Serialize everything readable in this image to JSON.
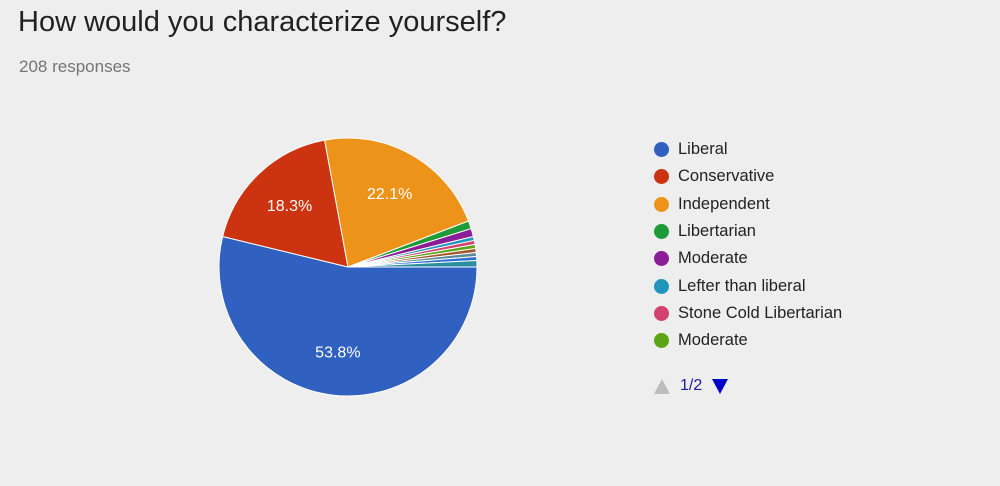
{
  "header": {
    "title": "How would you characterize yourself?",
    "responses": "208 responses"
  },
  "chart_data": {
    "type": "pie",
    "slices": [
      {
        "label": "Liberal",
        "value": 53.8,
        "color": "#3060c0",
        "data_label": "53.8%"
      },
      {
        "label": "Conservative",
        "value": 18.3,
        "color": "#cc3311",
        "data_label": "18.3%"
      },
      {
        "label": "Independent",
        "value": 22.1,
        "color": "#ee9319",
        "data_label": "22.1%"
      },
      {
        "label": "Libertarian",
        "value": 1.0,
        "color": "#1f9a39",
        "data_label": ""
      },
      {
        "label": "Moderate",
        "value": 1.0,
        "color": "#8c1d98",
        "data_label": ""
      },
      {
        "label": "Lefter than liberal",
        "value": 0.5,
        "color": "#2196bc",
        "data_label": ""
      },
      {
        "label": "Stone Cold Libertarian",
        "value": 0.5,
        "color": "#d3426f",
        "data_label": ""
      },
      {
        "label": "Moderate",
        "value": 0.5,
        "color": "#5da416",
        "data_label": ""
      },
      {
        "label": "",
        "value": 0.5,
        "color": "#a05a2c",
        "data_label": ""
      },
      {
        "label": "",
        "value": 0.5,
        "color": "#5a8a99",
        "data_label": ""
      },
      {
        "label": "",
        "value": 0.5,
        "color": "#2a6fd6",
        "data_label": ""
      },
      {
        "label": "",
        "value": 0.8,
        "color": "#2c8fa0",
        "data_label": ""
      }
    ],
    "legend_position": "right"
  },
  "legend": {
    "items": [
      {
        "label": "Liberal",
        "color": "#3060c0"
      },
      {
        "label": "Conservative",
        "color": "#cc3311"
      },
      {
        "label": "Independent",
        "color": "#ee9319"
      },
      {
        "label": "Libertarian",
        "color": "#1f9a39"
      },
      {
        "label": "Moderate",
        "color": "#8c1d98"
      },
      {
        "label": "Lefter than liberal",
        "color": "#2196bc"
      },
      {
        "label": "Stone Cold Libertarian",
        "color": "#d3426f"
      },
      {
        "label": "Moderate",
        "color": "#5da416"
      }
    ]
  },
  "pager": {
    "label": "1/2",
    "prev_icon": "triangle-up-icon",
    "next_icon": "triangle-down-icon"
  }
}
